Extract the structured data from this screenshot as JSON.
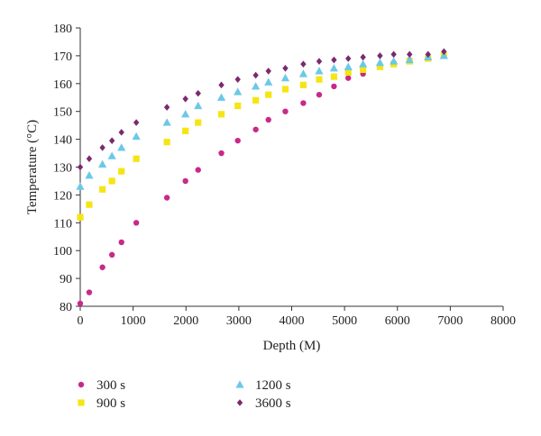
{
  "chart_data": {
    "type": "scatter",
    "title": "",
    "xlabel": "Depth (M)",
    "ylabel": "Temperature (°C)",
    "xlim": [
      0,
      8000
    ],
    "ylim": [
      80,
      180
    ],
    "xticks": [
      0,
      1000,
      2000,
      3000,
      4000,
      5000,
      6000,
      7000,
      8000
    ],
    "yticks": [
      80,
      90,
      100,
      110,
      120,
      130,
      140,
      150,
      160,
      170,
      180
    ],
    "grid": false,
    "legend_position": "bottom",
    "series": [
      {
        "name": "300 s",
        "color": "#c8298a",
        "marker": "circle",
        "x": [
          0,
          170,
          420,
          600,
          780,
          1060,
          1640,
          1990,
          2230,
          2670,
          2980,
          3320,
          3560,
          3880,
          4220,
          4520,
          4800,
          5070,
          5350,
          5670,
          5930,
          6230,
          6580,
          6880
        ],
        "y": [
          81,
          85,
          94,
          98.5,
          103,
          110,
          119,
          125,
          129,
          135,
          139.5,
          143.5,
          147,
          150,
          153,
          156,
          159,
          162,
          163.5,
          166,
          167.5,
          168.5,
          169.5,
          170
        ]
      },
      {
        "name": "900 s",
        "color": "#f5e514",
        "marker": "square",
        "x": [
          0,
          170,
          420,
          600,
          780,
          1060,
          1640,
          1990,
          2230,
          2670,
          2980,
          3320,
          3560,
          3880,
          4220,
          4520,
          4800,
          5070,
          5350,
          5670,
          5930,
          6230,
          6580,
          6880
        ],
        "y": [
          112,
          116.5,
          122,
          125,
          128.5,
          133,
          139,
          143,
          146,
          149,
          152,
          154,
          156,
          158,
          159.5,
          161.5,
          162.5,
          164,
          165,
          166,
          167,
          168,
          169,
          170
        ]
      },
      {
        "name": "1200 s",
        "color": "#6cc8e8",
        "marker": "triangle",
        "x": [
          0,
          170,
          420,
          600,
          780,
          1060,
          1640,
          1990,
          2230,
          2670,
          2980,
          3320,
          3560,
          3880,
          4220,
          4520,
          4800,
          5070,
          5350,
          5670,
          5930,
          6230,
          6580,
          6880
        ],
        "y": [
          123,
          127,
          131,
          134,
          137,
          141,
          146,
          149,
          152,
          155,
          157,
          159,
          160.5,
          162,
          163.5,
          164.5,
          165.5,
          166,
          167,
          167.5,
          168,
          168.5,
          169.5,
          170
        ]
      },
      {
        "name": "3600 s",
        "color": "#7a2a6e",
        "marker": "diamond",
        "x": [
          0,
          170,
          420,
          600,
          780,
          1060,
          1640,
          1990,
          2230,
          2670,
          2980,
          3320,
          3560,
          3880,
          4220,
          4520,
          4800,
          5070,
          5350,
          5670,
          5930,
          6230,
          6580,
          6880
        ],
        "y": [
          130,
          133,
          137,
          139.5,
          142.5,
          146,
          151.5,
          154.5,
          156.5,
          159.5,
          161.5,
          163,
          164.5,
          165.5,
          167,
          168,
          168.5,
          169,
          169.5,
          170,
          170.5,
          170.5,
          170.5,
          171.5
        ]
      }
    ]
  }
}
